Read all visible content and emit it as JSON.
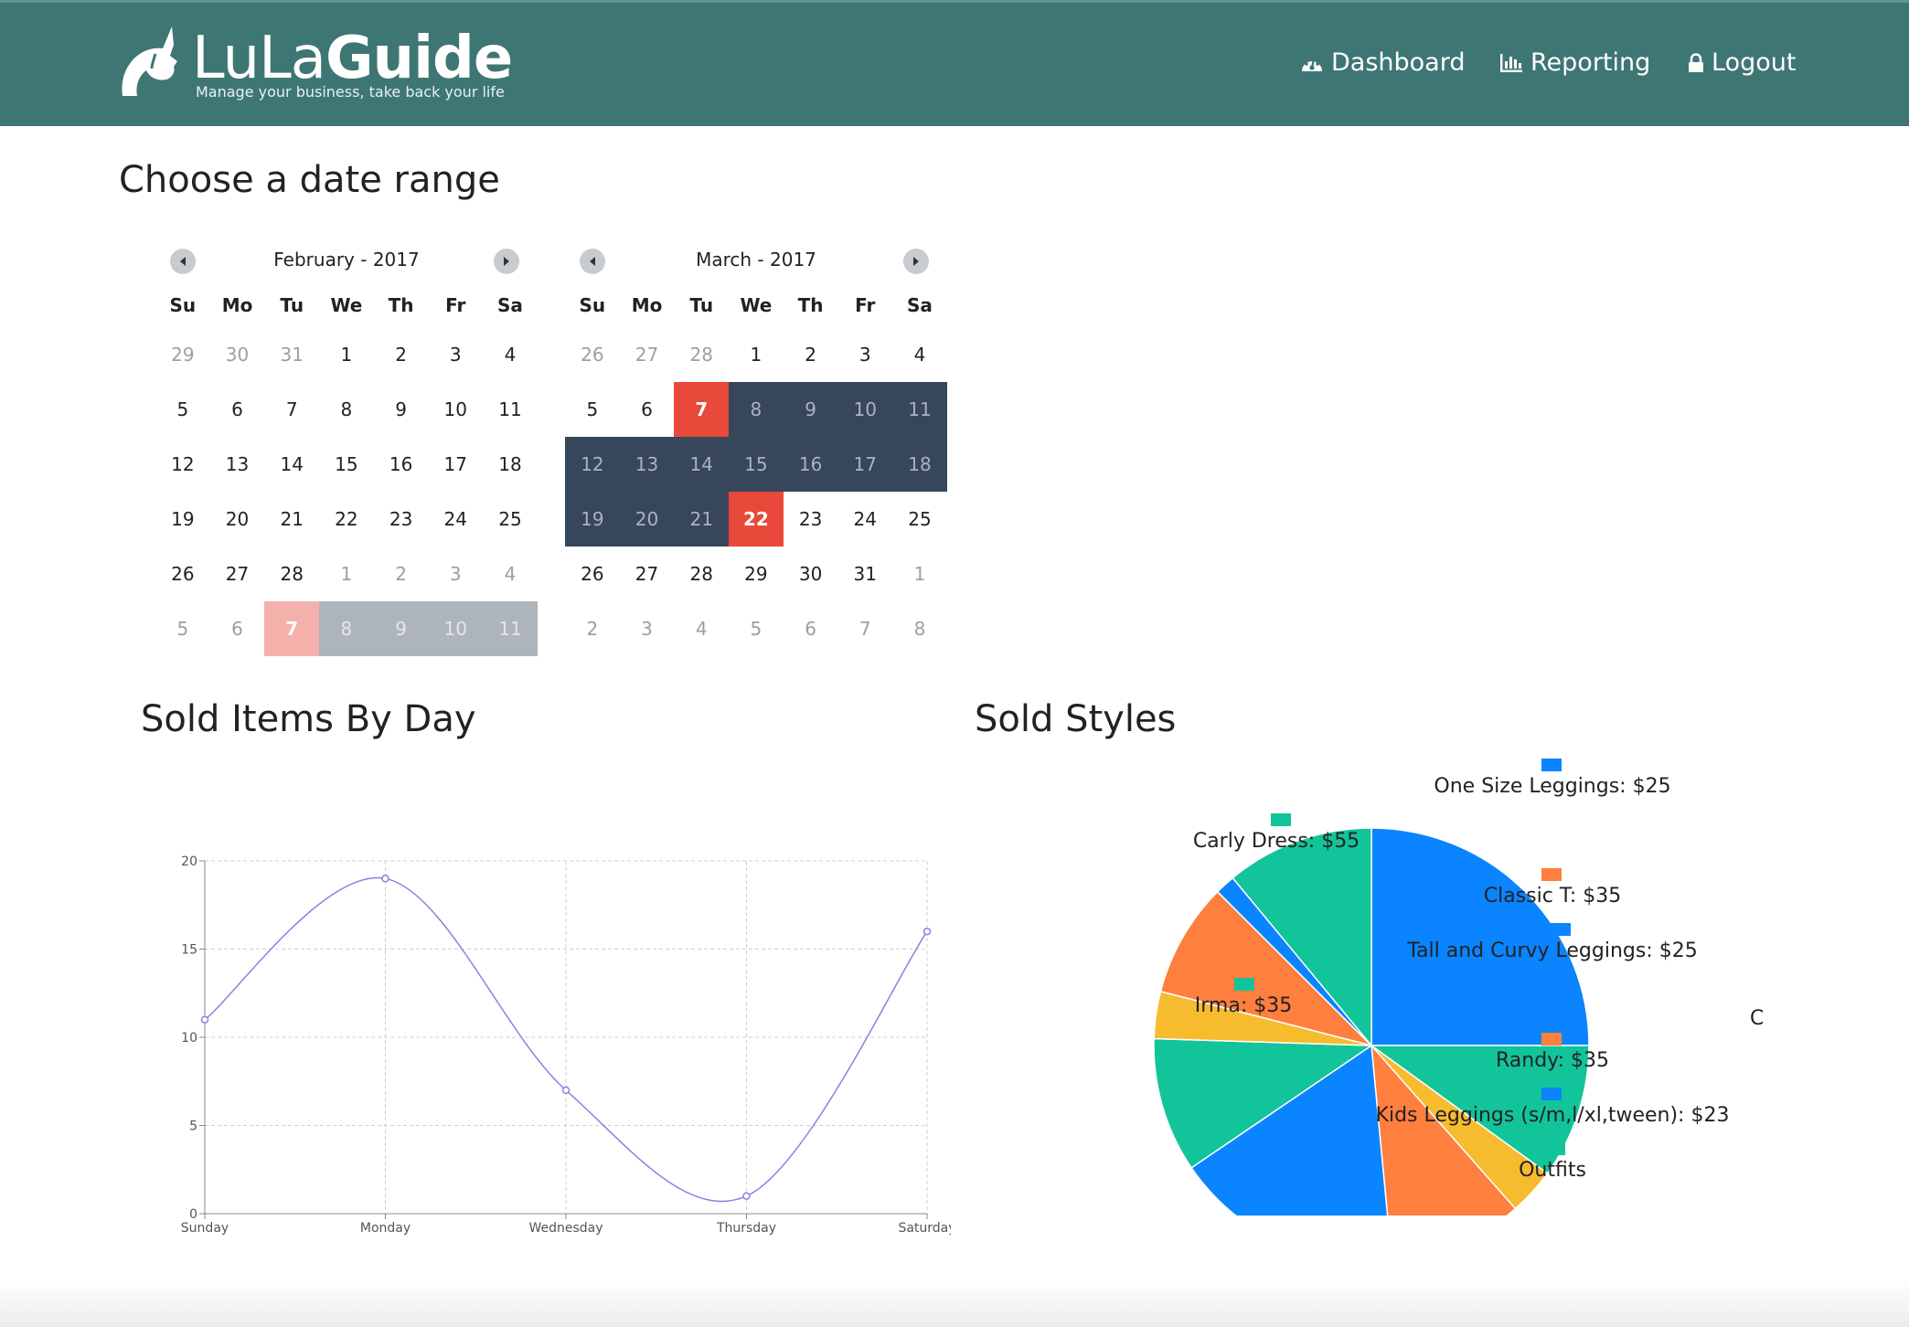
{
  "brand": {
    "name_light": "LuLa",
    "name_bold": "Guide",
    "tagline": "Manage your business, take back your life",
    "color": "#3e7673"
  },
  "nav": {
    "dashboard": "Dashboard",
    "reporting": "Reporting",
    "logout": "Logout"
  },
  "page": {
    "date_range_title": "Choose a date range",
    "sold_items_title": "Sold Items By Day",
    "sold_styles_title": "Sold Styles"
  },
  "calendar": {
    "weekdays": [
      "Su",
      "Mo",
      "Tu",
      "We",
      "Th",
      "Fr",
      "Sa"
    ],
    "months": [
      {
        "title": "February - 2017",
        "weeks": [
          [
            [
              "29",
              "other"
            ],
            [
              "30",
              "other"
            ],
            [
              "31",
              "other"
            ],
            [
              "1",
              ""
            ],
            [
              "2",
              ""
            ],
            [
              "3",
              ""
            ],
            [
              "4",
              ""
            ]
          ],
          [
            [
              "5",
              ""
            ],
            [
              "6",
              ""
            ],
            [
              "7",
              ""
            ],
            [
              "8",
              ""
            ],
            [
              "9",
              ""
            ],
            [
              "10",
              ""
            ],
            [
              "11",
              ""
            ]
          ],
          [
            [
              "12",
              ""
            ],
            [
              "13",
              ""
            ],
            [
              "14",
              ""
            ],
            [
              "15",
              ""
            ],
            [
              "16",
              ""
            ],
            [
              "17",
              ""
            ],
            [
              "18",
              ""
            ]
          ],
          [
            [
              "19",
              ""
            ],
            [
              "20",
              ""
            ],
            [
              "21",
              ""
            ],
            [
              "22",
              ""
            ],
            [
              "23",
              ""
            ],
            [
              "24",
              ""
            ],
            [
              "25",
              ""
            ]
          ],
          [
            [
              "26",
              ""
            ],
            [
              "27",
              ""
            ],
            [
              "28",
              ""
            ],
            [
              "1",
              "other"
            ],
            [
              "2",
              "other"
            ],
            [
              "3",
              "other"
            ],
            [
              "4",
              "other"
            ]
          ],
          [
            [
              "5",
              "other"
            ],
            [
              "6",
              "other"
            ],
            [
              "7",
              "edge-light"
            ],
            [
              "8",
              "range-light"
            ],
            [
              "9",
              "range-light"
            ],
            [
              "10",
              "range-light"
            ],
            [
              "11",
              "range-light"
            ]
          ]
        ]
      },
      {
        "title": "March - 2017",
        "weeks": [
          [
            [
              "26",
              "other"
            ],
            [
              "27",
              "other"
            ],
            [
              "28",
              "other"
            ],
            [
              "1",
              ""
            ],
            [
              "2",
              ""
            ],
            [
              "3",
              ""
            ],
            [
              "4",
              ""
            ]
          ],
          [
            [
              "5",
              ""
            ],
            [
              "6",
              ""
            ],
            [
              "7",
              "edge"
            ],
            [
              "8",
              "range"
            ],
            [
              "9",
              "range"
            ],
            [
              "10",
              "range"
            ],
            [
              "11",
              "range"
            ]
          ],
          [
            [
              "12",
              "range"
            ],
            [
              "13",
              "range"
            ],
            [
              "14",
              "range"
            ],
            [
              "15",
              "range"
            ],
            [
              "16",
              "range"
            ],
            [
              "17",
              "range"
            ],
            [
              "18",
              "range"
            ]
          ],
          [
            [
              "19",
              "range"
            ],
            [
              "20",
              "range"
            ],
            [
              "21",
              "range"
            ],
            [
              "22",
              "edge"
            ],
            [
              "23",
              ""
            ],
            [
              "24",
              ""
            ],
            [
              "25",
              ""
            ]
          ],
          [
            [
              "26",
              ""
            ],
            [
              "27",
              ""
            ],
            [
              "28",
              ""
            ],
            [
              "29",
              ""
            ],
            [
              "30",
              ""
            ],
            [
              "31",
              ""
            ],
            [
              "1",
              "other"
            ]
          ],
          [
            [
              "2",
              "other"
            ],
            [
              "3",
              "other"
            ],
            [
              "4",
              "other"
            ],
            [
              "5",
              "other"
            ],
            [
              "6",
              "other"
            ],
            [
              "7",
              "other"
            ],
            [
              "8",
              "other"
            ]
          ]
        ]
      }
    ],
    "selected_start": "7",
    "selected_end": "22"
  },
  "chart_data": [
    {
      "type": "line",
      "x": [
        "Sunday",
        "Monday",
        "Wednesday",
        "Thursday",
        "Saturday"
      ],
      "values": [
        11,
        19,
        7,
        1,
        16
      ],
      "ylim": [
        0,
        20
      ],
      "yticks": [
        0,
        5,
        10,
        15,
        20
      ],
      "grid": true,
      "color": "#8b80e0"
    },
    {
      "type": "pie",
      "slices": [
        {
          "label": "One Size Leggings: $25",
          "value": 25,
          "color": "#0a84ff"
        },
        {
          "label": "Carly Dress: $55",
          "value": 10,
          "color": "#12c49a"
        },
        {
          "label": "",
          "value": 3.5,
          "color": "#f7bb2e"
        },
        {
          "label": "Classic T: $35",
          "value": 10,
          "color": "#ff7f3e"
        },
        {
          "label": "Irma: $35",
          "value": 17,
          "color": "#0a84ff"
        },
        {
          "label": "Tall and Curvy Leggings: $25",
          "value": 10,
          "color": "#12c49a"
        },
        {
          "label": "",
          "value": 3.5,
          "color": "#f7bb2e"
        },
        {
          "label": "Randy: $35",
          "value": 8.5,
          "color": "#ff7f3e"
        },
        {
          "label": "Kids Leggings (s/m,l/xl,tween): $23",
          "value": 1.5,
          "color": "#0a84ff"
        },
        {
          "label": "Outfits",
          "value": 11,
          "color": "#12c49a"
        }
      ],
      "legend": [
        {
          "label": "One Size Leggings: $25",
          "color": "#0a84ff"
        },
        {
          "label": "Carly Dress: $55",
          "color": "#12c49a"
        },
        {
          "label": "Classic T: $35",
          "color": "#ff7f3e"
        },
        {
          "label": "Tall and Curvy Leggings: $25",
          "color": "#0a84ff"
        },
        {
          "label": "Irma: $35",
          "color": "#12c49a"
        },
        {
          "label": "Randy: $35",
          "color": "#ff7f3e"
        },
        {
          "label": "Kids Leggings (s/m,l/xl,tween): $23",
          "color": "#0a84ff"
        },
        {
          "label": "Outfits",
          "color": "#12c49a"
        }
      ],
      "clipped_label": "C"
    }
  ]
}
